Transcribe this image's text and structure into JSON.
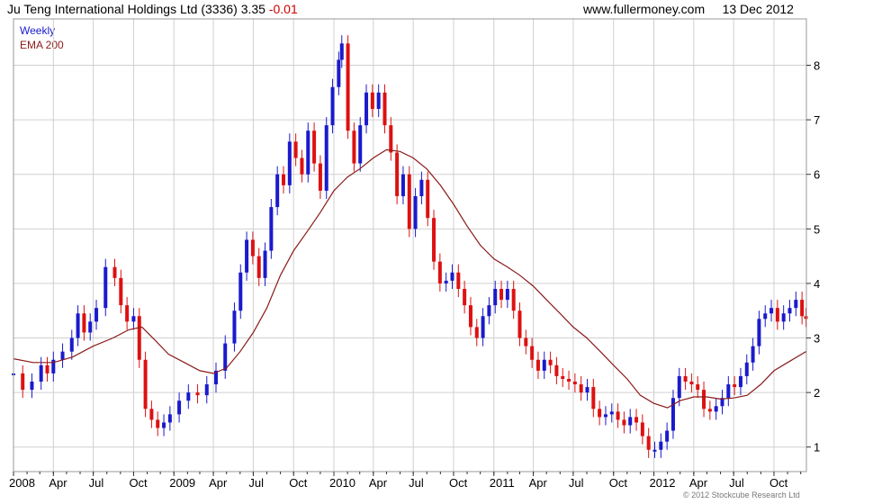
{
  "header": {
    "company": "Ju Teng International Holdings Ltd",
    "ticker": "(3336)",
    "price": "3.35",
    "change": "-0.01",
    "website": "www.fullermoney.com",
    "date": "13 Dec 2012"
  },
  "legend": {
    "weekly": "Weekly",
    "ema": "EMA 200"
  },
  "copyright": "© 2012 Stockcube Research Ltd",
  "colors": {
    "up": "#1a1acc",
    "down": "#dd1111",
    "ema": "#8b1a1a",
    "grid": "#d0d0d0",
    "change": "#cc0000"
  },
  "chart_data": {
    "type": "line",
    "title": "Ju Teng International Holdings Ltd (3336) 3.35 -0.01",
    "ylim": [
      0.55,
      8.85
    ],
    "y_ticks": [
      "1",
      "2",
      "3",
      "4",
      "5",
      "6",
      "7",
      "8"
    ],
    "x_ticks": [
      "2008",
      "Apr",
      "Jul",
      "Oct",
      "2009",
      "Apr",
      "Jul",
      "Oct",
      "2010",
      "Apr",
      "Jul",
      "Oct",
      "2011",
      "Apr",
      "Jul",
      "Oct",
      "2012",
      "Apr",
      "Jul",
      "Oct"
    ],
    "x_range": [
      "2008-01-01",
      "2012-12-14"
    ],
    "grid": true,
    "legend_position": "top-left",
    "series": [
      {
        "name": "Weekly",
        "style": "candlestick (blue up / red down)",
        "points": [
          [
            "2008-01-01",
            2.35
          ],
          [
            "2008-01-22",
            2.05
          ],
          [
            "2008-02-12",
            2.2
          ],
          [
            "2008-03-04",
            2.5
          ],
          [
            "2008-03-18",
            2.35
          ],
          [
            "2008-04-01",
            2.6
          ],
          [
            "2008-04-22",
            2.75
          ],
          [
            "2008-05-13",
            3.0
          ],
          [
            "2008-05-27",
            3.45
          ],
          [
            "2008-06-10",
            3.1
          ],
          [
            "2008-06-24",
            3.3
          ],
          [
            "2008-07-08",
            3.55
          ],
          [
            "2008-07-29",
            4.3
          ],
          [
            "2008-08-19",
            4.1
          ],
          [
            "2008-09-02",
            3.6
          ],
          [
            "2008-09-16",
            3.3
          ],
          [
            "2008-10-01",
            3.4
          ],
          [
            "2008-10-14",
            2.6
          ],
          [
            "2008-10-28",
            1.7
          ],
          [
            "2008-11-11",
            1.5
          ],
          [
            "2008-11-25",
            1.35
          ],
          [
            "2008-12-09",
            1.45
          ],
          [
            "2008-12-23",
            1.6
          ],
          [
            "2009-01-13",
            1.85
          ],
          [
            "2009-02-03",
            2.0
          ],
          [
            "2009-02-24",
            1.95
          ],
          [
            "2009-03-17",
            2.15
          ],
          [
            "2009-04-07",
            2.4
          ],
          [
            "2009-04-28",
            2.9
          ],
          [
            "2009-05-19",
            3.5
          ],
          [
            "2009-06-02",
            4.2
          ],
          [
            "2009-06-16",
            4.8
          ],
          [
            "2009-06-30",
            4.5
          ],
          [
            "2009-07-14",
            4.1
          ],
          [
            "2009-07-28",
            4.6
          ],
          [
            "2009-08-11",
            5.4
          ],
          [
            "2009-08-25",
            6.0
          ],
          [
            "2009-09-08",
            5.8
          ],
          [
            "2009-09-22",
            6.6
          ],
          [
            "2009-10-06",
            6.3
          ],
          [
            "2009-10-20",
            6.0
          ],
          [
            "2009-11-03",
            6.8
          ],
          [
            "2009-11-17",
            6.2
          ],
          [
            "2009-12-01",
            5.7
          ],
          [
            "2009-12-15",
            6.9
          ],
          [
            "2009-12-29",
            7.6
          ],
          [
            "2010-01-12",
            8.1
          ],
          [
            "2010-01-19",
            8.4
          ],
          [
            "2010-02-02",
            6.8
          ],
          [
            "2010-02-16",
            6.2
          ],
          [
            "2010-03-02",
            6.9
          ],
          [
            "2010-03-16",
            7.5
          ],
          [
            "2010-03-30",
            7.2
          ],
          [
            "2010-04-13",
            7.5
          ],
          [
            "2010-04-27",
            6.9
          ],
          [
            "2010-05-11",
            6.4
          ],
          [
            "2010-05-25",
            5.6
          ],
          [
            "2010-06-08",
            6.0
          ],
          [
            "2010-06-22",
            5.0
          ],
          [
            "2010-07-06",
            5.6
          ],
          [
            "2010-07-20",
            5.9
          ],
          [
            "2010-08-03",
            5.2
          ],
          [
            "2010-08-17",
            4.4
          ],
          [
            "2010-08-31",
            4.0
          ],
          [
            "2010-09-14",
            4.05
          ],
          [
            "2010-09-28",
            4.2
          ],
          [
            "2010-10-12",
            3.9
          ],
          [
            "2010-10-26",
            3.6
          ],
          [
            "2010-11-09",
            3.2
          ],
          [
            "2010-11-23",
            3.0
          ],
          [
            "2010-12-07",
            3.4
          ],
          [
            "2010-12-21",
            3.6
          ],
          [
            "2011-01-04",
            3.9
          ],
          [
            "2011-01-18",
            3.7
          ],
          [
            "2011-02-01",
            3.9
          ],
          [
            "2011-02-15",
            3.5
          ],
          [
            "2011-03-01",
            3.0
          ],
          [
            "2011-03-15",
            2.85
          ],
          [
            "2011-03-29",
            2.6
          ],
          [
            "2011-04-12",
            2.4
          ],
          [
            "2011-04-26",
            2.6
          ],
          [
            "2011-05-10",
            2.5
          ],
          [
            "2011-05-24",
            2.3
          ],
          [
            "2011-06-07",
            2.25
          ],
          [
            "2011-06-21",
            2.2
          ],
          [
            "2011-07-05",
            2.15
          ],
          [
            "2011-07-19",
            2.0
          ],
          [
            "2011-08-02",
            2.1
          ],
          [
            "2011-08-16",
            1.7
          ],
          [
            "2011-08-30",
            1.55
          ],
          [
            "2011-09-13",
            1.6
          ],
          [
            "2011-09-27",
            1.65
          ],
          [
            "2011-10-11",
            1.5
          ],
          [
            "2011-10-25",
            1.4
          ],
          [
            "2011-11-08",
            1.55
          ],
          [
            "2011-11-22",
            1.45
          ],
          [
            "2011-12-06",
            1.2
          ],
          [
            "2011-12-20",
            0.95
          ],
          [
            "2012-01-03",
            0.95
          ],
          [
            "2012-01-17",
            1.1
          ],
          [
            "2012-01-31",
            1.3
          ],
          [
            "2012-02-14",
            1.9
          ],
          [
            "2012-02-28",
            2.3
          ],
          [
            "2012-03-13",
            2.2
          ],
          [
            "2012-03-27",
            2.15
          ],
          [
            "2012-04-10",
            2.05
          ],
          [
            "2012-04-24",
            1.7
          ],
          [
            "2012-05-08",
            1.65
          ],
          [
            "2012-05-22",
            1.75
          ],
          [
            "2012-06-05",
            1.9
          ],
          [
            "2012-06-19",
            2.15
          ],
          [
            "2012-07-03",
            2.1
          ],
          [
            "2012-07-17",
            2.3
          ],
          [
            "2012-07-31",
            2.55
          ],
          [
            "2012-08-14",
            2.85
          ],
          [
            "2012-08-28",
            3.35
          ],
          [
            "2012-09-11",
            3.45
          ],
          [
            "2012-09-25",
            3.55
          ],
          [
            "2012-10-09",
            3.3
          ],
          [
            "2012-10-23",
            3.45
          ],
          [
            "2012-11-06",
            3.55
          ],
          [
            "2012-11-20",
            3.7
          ],
          [
            "2012-12-04",
            3.4
          ],
          [
            "2012-12-13",
            3.35
          ]
        ]
      },
      {
        "name": "EMA 200",
        "style": "line",
        "points": [
          [
            "2008-01-01",
            2.62
          ],
          [
            "2008-02-15",
            2.55
          ],
          [
            "2008-04-01",
            2.55
          ],
          [
            "2008-05-15",
            2.65
          ],
          [
            "2008-07-01",
            2.85
          ],
          [
            "2008-08-15",
            3.0
          ],
          [
            "2008-09-20",
            3.15
          ],
          [
            "2008-10-20",
            3.2
          ],
          [
            "2008-11-20",
            2.95
          ],
          [
            "2008-12-20",
            2.7
          ],
          [
            "2009-01-25",
            2.55
          ],
          [
            "2009-03-01",
            2.4
          ],
          [
            "2009-04-01",
            2.35
          ],
          [
            "2009-05-01",
            2.45
          ],
          [
            "2009-06-01",
            2.75
          ],
          [
            "2009-07-01",
            3.1
          ],
          [
            "2009-08-01",
            3.55
          ],
          [
            "2009-09-01",
            4.15
          ],
          [
            "2009-10-01",
            4.6
          ],
          [
            "2009-11-01",
            4.95
          ],
          [
            "2009-12-01",
            5.3
          ],
          [
            "2010-01-01",
            5.7
          ],
          [
            "2010-02-01",
            5.95
          ],
          [
            "2010-03-01",
            6.1
          ],
          [
            "2010-04-01",
            6.3
          ],
          [
            "2010-05-01",
            6.45
          ],
          [
            "2010-06-01",
            6.42
          ],
          [
            "2010-07-01",
            6.3
          ],
          [
            "2010-08-01",
            6.1
          ],
          [
            "2010-09-01",
            5.8
          ],
          [
            "2010-10-01",
            5.45
          ],
          [
            "2010-11-01",
            5.05
          ],
          [
            "2010-12-01",
            4.7
          ],
          [
            "2011-01-01",
            4.45
          ],
          [
            "2011-02-01",
            4.3
          ],
          [
            "2011-03-01",
            4.15
          ],
          [
            "2011-04-01",
            3.95
          ],
          [
            "2011-05-01",
            3.7
          ],
          [
            "2011-06-01",
            3.45
          ],
          [
            "2011-07-01",
            3.2
          ],
          [
            "2011-08-01",
            3.0
          ],
          [
            "2011-09-01",
            2.75
          ],
          [
            "2011-10-01",
            2.5
          ],
          [
            "2011-11-01",
            2.25
          ],
          [
            "2011-12-01",
            1.95
          ],
          [
            "2012-01-01",
            1.8
          ],
          [
            "2012-02-01",
            1.72
          ],
          [
            "2012-03-01",
            1.85
          ],
          [
            "2012-04-01",
            1.92
          ],
          [
            "2012-05-01",
            1.92
          ],
          [
            "2012-06-01",
            1.88
          ],
          [
            "2012-07-01",
            1.9
          ],
          [
            "2012-08-01",
            1.95
          ],
          [
            "2012-09-01",
            2.15
          ],
          [
            "2012-10-01",
            2.4
          ],
          [
            "2012-11-01",
            2.55
          ],
          [
            "2012-12-13",
            2.75
          ]
        ]
      }
    ]
  }
}
